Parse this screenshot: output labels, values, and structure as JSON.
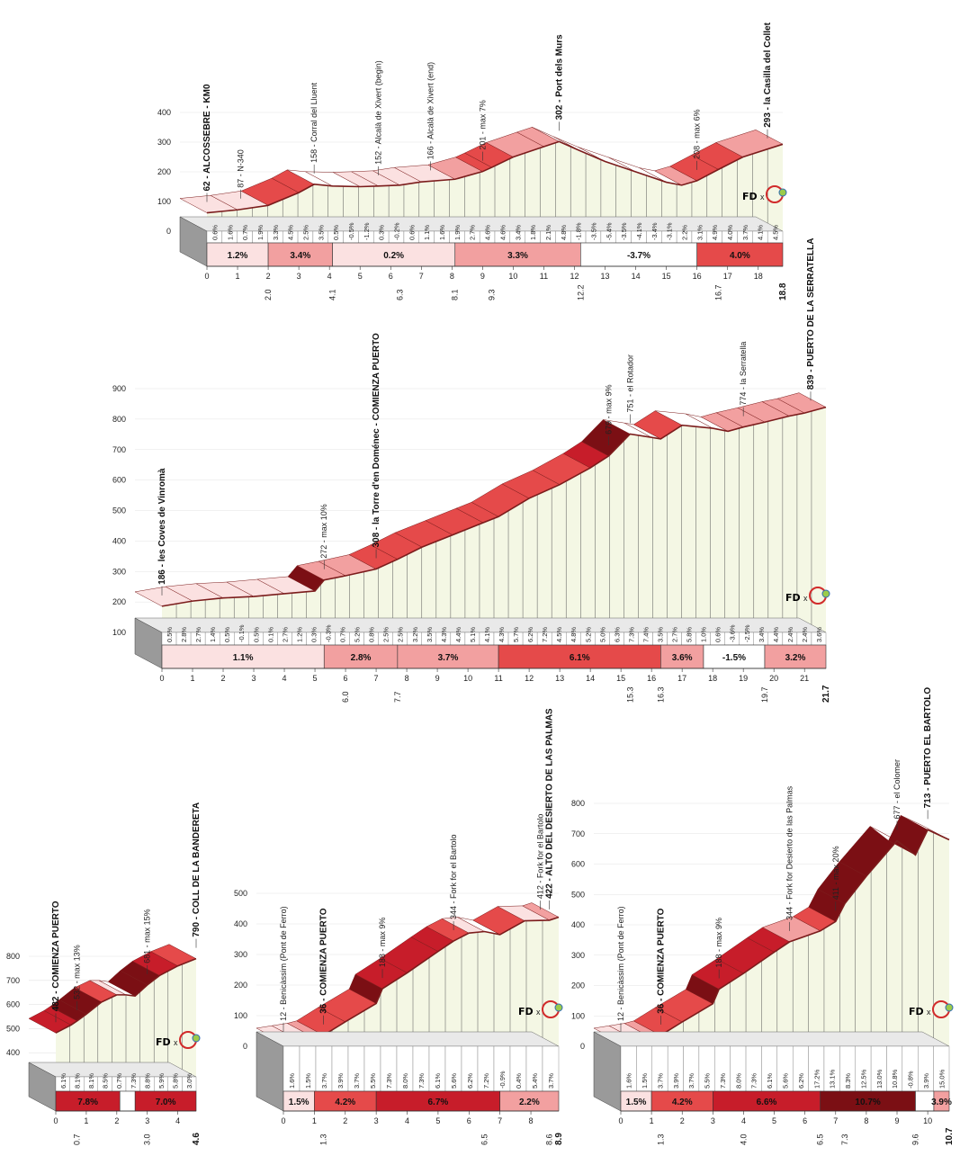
{
  "logo": {
    "text_fd": "FD",
    "text_x": "x",
    "icon": "ciclo-web-logo"
  },
  "colors": {
    "grade_low": "#fbe1e1",
    "grade_mid": "#f2a0a0",
    "grade_high": "#e54a4a",
    "grade_steep": "#c71d2a",
    "grade_extreme": "#7b0f14",
    "descent": "#ffffff",
    "fill": "#f4f7e4",
    "outline": "#7b1c1c",
    "base": "#cfcfcf"
  },
  "chart_data": [
    {
      "type": "area",
      "name": "Alcossebre – la Casilla del Collet",
      "ylim": [
        0,
        400
      ],
      "yticks": [
        0,
        100,
        200,
        300,
        400
      ],
      "xlim": [
        0,
        18.8
      ],
      "profile": {
        "x": [
          0,
          1.0,
          2.0,
          3.0,
          3.5,
          4.1,
          5.0,
          5.6,
          6.3,
          7.0,
          8.1,
          9.0,
          9.3,
          10.0,
          11.0,
          11.5,
          12.2,
          13.0,
          14.0,
          15.0,
          15.5,
          16.0,
          16.7,
          17.5,
          18.8
        ],
        "y": [
          62,
          72,
          87,
          130,
          158,
          152,
          150,
          152,
          155,
          166,
          175,
          201,
          215,
          250,
          285,
          302,
          270,
          235,
          200,
          165,
          155,
          170,
          208,
          250,
          293
        ]
      },
      "km_segments": [
        "0.6%",
        "1.6%",
        "0.7%",
        "1.9%",
        "3.3%",
        "4.5%",
        "2.5%",
        "3.5%",
        "0.5%",
        "-0.5%",
        "-1.2%",
        "0.3%",
        "-0.2%",
        "0.6%",
        "1.1%",
        "1.6%",
        "1.9%",
        "2.7%",
        "4.6%",
        "4.6%",
        "3.4%",
        "1.8%",
        "2.1%",
        "4.8%",
        "-1.8%",
        "-3.5%",
        "-5.4%",
        "-3.5%",
        "-4.1%",
        "-3.4%",
        "-3.1%",
        "2.2%",
        "3.1%",
        "4.9%",
        "4.0%",
        "3.7%",
        "4.1%",
        "4.5%"
      ],
      "sections": [
        {
          "from": 0,
          "to": 2.0,
          "grade": "1.2%"
        },
        {
          "from": 2.0,
          "to": 4.1,
          "grade": "3.4%"
        },
        {
          "from": 4.1,
          "to": 8.1,
          "grade": "0.2%"
        },
        {
          "from": 8.1,
          "to": 12.2,
          "grade": "3.3%"
        },
        {
          "from": 12.2,
          "to": 16.0,
          "grade": "-3.7%"
        },
        {
          "from": 16.0,
          "to": 18.8,
          "grade": "4.0%"
        }
      ],
      "xticks": [
        "0",
        "1",
        "2",
        "3",
        "4",
        "5",
        "6",
        "7",
        "8",
        "9",
        "10",
        "11",
        "12",
        "13",
        "14",
        "15",
        "16",
        "17",
        "18"
      ],
      "km_markers": [
        "2.0",
        "4.1",
        "6.3",
        "8.1",
        "9.3",
        "12.2",
        "16.7",
        "18.8"
      ],
      "annotations": [
        {
          "km": 0,
          "text": "62 - ALCOSSEBRE - KM0",
          "bold": true
        },
        {
          "km": 1.1,
          "text": "87 - N-340"
        },
        {
          "km": 3.5,
          "text": "158 - Corral del Lluent"
        },
        {
          "km": 5.6,
          "text": "152 - Alcalà de Xivert (begin)"
        },
        {
          "km": 7.3,
          "text": "166 - Alcalà de Xivert (end)"
        },
        {
          "km": 9.0,
          "text": "201 - max 7%"
        },
        {
          "km": 11.5,
          "text": "302 - Port dels Murs",
          "bold": true
        },
        {
          "km": 16.0,
          "text": "208 - max 6%"
        },
        {
          "km": 18.3,
          "text": "293 - la Casilla del Collet",
          "bold": true
        }
      ]
    },
    {
      "type": "area",
      "name": "les Coves de Vinromà – Puerto de la Serratella",
      "ylim": [
        100,
        900
      ],
      "yticks": [
        100,
        200,
        300,
        400,
        500,
        600,
        700,
        800,
        900
      ],
      "xlim": [
        0,
        21.7
      ],
      "profile": {
        "x": [
          0,
          1,
          2,
          3,
          4,
          5,
          5.3,
          6.0,
          7.0,
          7.7,
          8.5,
          9.5,
          10.5,
          11.0,
          12.0,
          13.0,
          14.0,
          14.6,
          15.3,
          16.0,
          16.3,
          17.0,
          18.0,
          18.5,
          19.0,
          19.7,
          20.5,
          21.0,
          21.7
        ],
        "y": [
          186,
          203,
          213,
          218,
          227,
          236,
          272,
          286,
          308,
          340,
          380,
          420,
          460,
          480,
          540,
          585,
          640,
          679,
          751,
          740,
          735,
          780,
          770,
          760,
          774,
          790,
          810,
          820,
          839
        ]
      },
      "km_segments": [
        "0.5%",
        "2.8%",
        "2.7%",
        "1.4%",
        "0.5%",
        "-0.1%",
        "0.5%",
        "0.1%",
        "2.7%",
        "1.2%",
        "0.3%",
        "-0.3%",
        "0.7%",
        "5.2%",
        "0.8%",
        "2.5%",
        "2.5%",
        "3.2%",
        "3.5%",
        "4.3%",
        "4.4%",
        "5.1%",
        "4.1%",
        "4.3%",
        "5.7%",
        "6.2%",
        "7.2%",
        "4.5%",
        "4.8%",
        "5.2%",
        "5.0%",
        "6.3%",
        "7.3%",
        "7.4%",
        "3.5%",
        "2.7%",
        "5.8%",
        "1.0%",
        "0.6%",
        "-3.6%",
        "-2.5%",
        "3.4%",
        "4.4%",
        "2.4%",
        "2.4%",
        "3.6%"
      ],
      "sections": [
        {
          "from": 0,
          "to": 5.3,
          "grade": "1.1%"
        },
        {
          "from": 5.3,
          "to": 7.7,
          "grade": "2.8%"
        },
        {
          "from": 7.7,
          "to": 11.0,
          "grade": "3.7%"
        },
        {
          "from": 11.0,
          "to": 16.3,
          "grade": "6.1%"
        },
        {
          "from": 16.3,
          "to": 17.7,
          "grade": "3.6%"
        },
        {
          "from": 17.7,
          "to": 19.7,
          "grade": "-1.5%"
        },
        {
          "from": 19.7,
          "to": 21.7,
          "grade": "3.2%"
        }
      ],
      "xticks": [
        "0",
        "1",
        "2",
        "3",
        "4",
        "5",
        "6",
        "7",
        "8",
        "9",
        "10",
        "11",
        "12",
        "13",
        "14",
        "15",
        "16",
        "17",
        "18",
        "19",
        "20",
        "21"
      ],
      "km_markers": [
        "6.0",
        "7.7",
        "15.3",
        "16.3",
        "19.7",
        "21.7"
      ],
      "annotations": [
        {
          "km": 0,
          "text": "186 - les Coves de Vinromà",
          "bold": true
        },
        {
          "km": 5.3,
          "text": "272 - max 10%"
        },
        {
          "km": 7.0,
          "text": "308 - la Torre d'en Doménec - COMIENZA PUERTO",
          "bold": true
        },
        {
          "km": 14.6,
          "text": "679 - max 9%"
        },
        {
          "km": 15.3,
          "text": "751 - el Rotador"
        },
        {
          "km": 19.0,
          "text": "774 - la Serratella"
        },
        {
          "km": 21.2,
          "text": "839 - PUERTO DE LA SERRATELLA",
          "bold": true
        }
      ]
    },
    {
      "type": "area",
      "name": "Coll de la Bandereta",
      "ylim": [
        300,
        800
      ],
      "yticks": [
        400,
        500,
        600,
        700,
        800
      ],
      "xlim": [
        0,
        4.6
      ],
      "profile": {
        "x": [
          0,
          0.5,
          0.7,
          1.0,
          1.5,
          2.0,
          2.3,
          2.6,
          3.0,
          3.4,
          4.0,
          4.6
        ],
        "y": [
          482,
          515,
          532,
          560,
          610,
          640,
          640,
          635,
          681,
          720,
          760,
          790
        ]
      },
      "km_segments": [
        "6.1%",
        "8.1%",
        "8.1%",
        "8.5%",
        "0.7%",
        "7.3%",
        "8.8%",
        "5.9%",
        "5.8%",
        "3.0%"
      ],
      "sections": [
        {
          "from": 0,
          "to": 2.1,
          "grade": "7.8%"
        },
        {
          "from": 2.1,
          "to": 2.6,
          "grade": ""
        },
        {
          "from": 2.6,
          "to": 4.6,
          "grade": "7.0%"
        }
      ],
      "xticks": [
        "0",
        "1",
        "2",
        "3",
        "4"
      ],
      "km_markers": [
        "0.7",
        "3.0",
        "4.6"
      ],
      "annotations": [
        {
          "km": 0,
          "text": "482 - COMIENZA PUERTO",
          "bold": true
        },
        {
          "km": 0.7,
          "text": "532 - max 13%"
        },
        {
          "km": 3.0,
          "text": "681 - max 15%"
        },
        {
          "km": 4.6,
          "text": "790 - COLL DE LA BANDERETA",
          "bold": true
        }
      ]
    },
    {
      "type": "area",
      "name": "Alto del Desierto de las Palmas",
      "ylim": [
        0,
        500
      ],
      "yticks": [
        0,
        100,
        200,
        300,
        400,
        500
      ],
      "xlim": [
        0,
        8.9
      ],
      "profile": {
        "x": [
          0,
          0.5,
          1.0,
          1.3,
          2.0,
          3.0,
          3.2,
          4.0,
          5.0,
          5.5,
          6.0,
          6.5,
          7.0,
          7.8,
          8.6,
          8.9
        ],
        "y": [
          12,
          20,
          28,
          36,
          80,
          140,
          188,
          240,
          310,
          344,
          370,
          375,
          365,
          410,
          412,
          422
        ]
      },
      "km_segments": [
        "1.6%",
        "1.5%",
        "3.7%",
        "3.9%",
        "3.7%",
        "5.5%",
        "7.3%",
        "8.0%",
        "7.3%",
        "6.1%",
        "5.6%",
        "6.2%",
        "7.2%",
        "-0.9%",
        "0.4%",
        "5.4%",
        "3.7%"
      ],
      "sections": [
        {
          "from": 0,
          "to": 1.0,
          "grade": "1.5%"
        },
        {
          "from": 1.0,
          "to": 3.0,
          "grade": "4.2%"
        },
        {
          "from": 3.0,
          "to": 7.0,
          "grade": "6.7%"
        },
        {
          "from": 7.0,
          "to": 8.9,
          "grade": "2.2%"
        }
      ],
      "xticks": [
        "0",
        "1",
        "2",
        "3",
        "4",
        "5",
        "6",
        "7",
        "8"
      ],
      "km_markers": [
        "1.3",
        "6.5",
        "8.6",
        "8.9"
      ],
      "annotations": [
        {
          "km": 0,
          "text": "12 - Benicàssim (Pont de Ferro)"
        },
        {
          "km": 1.3,
          "text": "36 - COMIENZA PUERTO",
          "bold": true
        },
        {
          "km": 3.2,
          "text": "188 - max 9%"
        },
        {
          "km": 5.5,
          "text": "344 - Fork for el Bartolo"
        },
        {
          "km": 8.3,
          "text": "412 - Fork for el Bartolo"
        },
        {
          "km": 8.6,
          "text": "422 - ALTO DEL DESIERTO DE LAS PALMAS",
          "bold": true
        }
      ]
    },
    {
      "type": "area",
      "name": "Puerto el Bartolo",
      "ylim": [
        0,
        800
      ],
      "yticks": [
        0,
        100,
        200,
        300,
        400,
        500,
        600,
        700,
        800
      ],
      "xlim": [
        0,
        10.7
      ],
      "profile": {
        "x": [
          0,
          0.5,
          1.0,
          1.3,
          2.0,
          3.0,
          3.2,
          4.0,
          5.0,
          5.5,
          6.5,
          7.0,
          7.3,
          8.0,
          9.0,
          9.6,
          10.0,
          10.7
        ],
        "y": [
          12,
          20,
          28,
          36,
          80,
          140,
          188,
          240,
          310,
          344,
          380,
          411,
          470,
          560,
          677,
          630,
          713,
          680
        ]
      },
      "km_segments": [
        "1.6%",
        "1.5%",
        "3.7%",
        "3.9%",
        "3.7%",
        "5.5%",
        "7.3%",
        "8.0%",
        "7.3%",
        "6.1%",
        "5.6%",
        "6.2%",
        "17.2%",
        "13.1%",
        "8.3%",
        "12.5%",
        "13.0%",
        "10.8%",
        "-0.8%",
        "3.9%",
        "15.0%"
      ],
      "sections": [
        {
          "from": 0,
          "to": 1.0,
          "grade": "1.5%"
        },
        {
          "from": 1.0,
          "to": 3.0,
          "grade": "4.2%"
        },
        {
          "from": 3.0,
          "to": 6.5,
          "grade": "6.6%"
        },
        {
          "from": 6.5,
          "to": 9.6,
          "grade": "10.7%"
        },
        {
          "from": 9.6,
          "to": 10.2,
          "grade": ""
        },
        {
          "from": 10.2,
          "to": 10.7,
          "grade": "3.9%"
        }
      ],
      "xticks": [
        "0",
        "1",
        "2",
        "3",
        "4",
        "5",
        "6",
        "7",
        "8",
        "9",
        "10"
      ],
      "km_markers": [
        "1.3",
        "4.0",
        "6.5",
        "7.3",
        "9.6",
        "10.7"
      ],
      "annotations": [
        {
          "km": 0,
          "text": "12 - Benicàssim (Pont de Ferro)"
        },
        {
          "km": 1.3,
          "text": "36 - COMIENZA PUERTO",
          "bold": true
        },
        {
          "km": 3.2,
          "text": "188 - max 9%"
        },
        {
          "km": 5.5,
          "text": "344 - Fork for Desierto de las Palmas"
        },
        {
          "km": 7.0,
          "text": "411 - max 20%"
        },
        {
          "km": 9.0,
          "text": "677 - el Colomer"
        },
        {
          "km": 10.0,
          "text": "713 - PUERTO EL BARTOLO",
          "bold": true
        }
      ]
    }
  ]
}
